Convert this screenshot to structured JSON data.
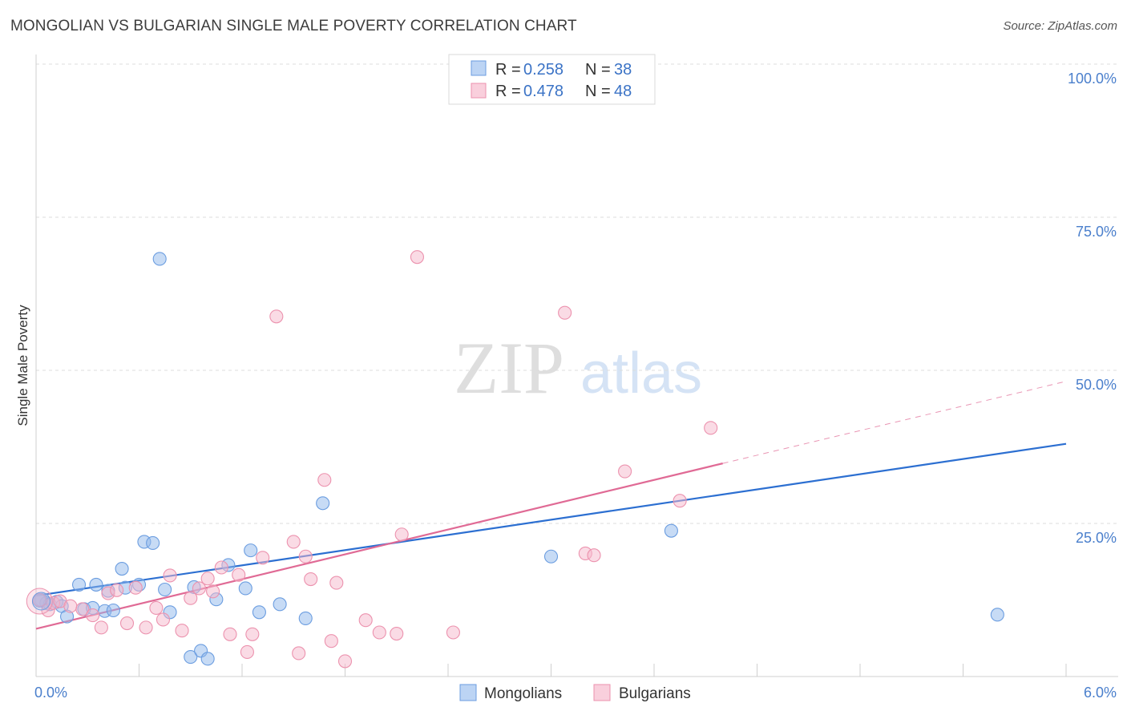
{
  "title": "MONGOLIAN VS BULGARIAN SINGLE MALE POVERTY CORRELATION CHART",
  "source": "Source: ZipAtlas.com",
  "watermark": {
    "zip": "ZIP",
    "atlas": "atlas"
  },
  "chart_data": {
    "type": "scatter",
    "xlabel": "",
    "ylabel": "Single Male Poverty",
    "xlim": [
      0,
      6
    ],
    "ylim": [
      0,
      100
    ],
    "x_tick_labels": [
      {
        "value": 0,
        "label": "0.0%"
      },
      {
        "value": 6,
        "label": "6.0%"
      }
    ],
    "y_tick_labels": [
      {
        "value": 25,
        "label": "25.0%"
      },
      {
        "value": 50,
        "label": "50.0%"
      },
      {
        "value": 75,
        "label": "75.0%"
      },
      {
        "value": 100,
        "label": "100.0%"
      }
    ],
    "grid": true,
    "legend": {
      "placement": "top-center",
      "entries": [
        {
          "r_label": "R =",
          "r_value": "0.258",
          "n_label": "N =",
          "n_value": "38"
        },
        {
          "r_label": "R =",
          "r_value": "0.478",
          "n_label": "N =",
          "n_value": "48"
        }
      ]
    },
    "series": [
      {
        "name": "Mongolians",
        "color": "#8fb8ec",
        "stroke": "#6b9de0",
        "line_color": "#2c6fd1",
        "trend": {
          "x": [
            0,
            6
          ],
          "y": [
            13.2,
            38
          ]
        },
        "points": [
          [
            0.03,
            12.5
          ],
          [
            0.06,
            12.0
          ],
          [
            0.08,
            11.8
          ],
          [
            0.12,
            12.2
          ],
          [
            0.15,
            11.5
          ],
          [
            0.18,
            9.8
          ],
          [
            0.25,
            15.0
          ],
          [
            0.28,
            11.0
          ],
          [
            0.33,
            11.2
          ],
          [
            0.35,
            15.0
          ],
          [
            0.4,
            10.7
          ],
          [
            0.42,
            14.0
          ],
          [
            0.45,
            10.8
          ],
          [
            0.5,
            17.6
          ],
          [
            0.52,
            14.5
          ],
          [
            0.6,
            15.0
          ],
          [
            0.63,
            22.0
          ],
          [
            0.68,
            21.8
          ],
          [
            0.72,
            68.2
          ],
          [
            0.75,
            14.2
          ],
          [
            0.78,
            10.5
          ],
          [
            0.9,
            3.2
          ],
          [
            0.92,
            14.6
          ],
          [
            0.96,
            4.2
          ],
          [
            1.0,
            2.9
          ],
          [
            1.05,
            12.6
          ],
          [
            1.12,
            18.2
          ],
          [
            1.22,
            14.4
          ],
          [
            1.25,
            20.6
          ],
          [
            1.3,
            10.5
          ],
          [
            1.42,
            11.8
          ],
          [
            1.57,
            9.5
          ],
          [
            1.67,
            28.3
          ],
          [
            2.88,
            100
          ],
          [
            3.0,
            19.6
          ],
          [
            3.7,
            23.8
          ],
          [
            5.6,
            10.1
          ],
          [
            0.02,
            12.4
          ]
        ]
      },
      {
        "name": "Bulgarians",
        "color": "#f5b8cb",
        "stroke": "#ec92ae",
        "line_color": "#e06a95",
        "trend": {
          "x": [
            0,
            4.0
          ],
          "y": [
            7.8,
            34.8
          ]
        },
        "trend_dashed": {
          "x": [
            4.0,
            6
          ],
          "y": [
            34.8,
            48.2
          ]
        },
        "points": [
          [
            0.02,
            12.5
          ],
          [
            0.07,
            10.8
          ],
          [
            0.1,
            12.0
          ],
          [
            0.14,
            12.3
          ],
          [
            0.2,
            11.5
          ],
          [
            0.27,
            11.0
          ],
          [
            0.33,
            10.0
          ],
          [
            0.38,
            8.0
          ],
          [
            0.42,
            13.6
          ],
          [
            0.47,
            14.1
          ],
          [
            0.53,
            8.7
          ],
          [
            0.58,
            14.5
          ],
          [
            0.64,
            8.0
          ],
          [
            0.7,
            11.2
          ],
          [
            0.74,
            9.3
          ],
          [
            0.78,
            16.5
          ],
          [
            0.85,
            7.5
          ],
          [
            0.9,
            12.8
          ],
          [
            0.95,
            14.4
          ],
          [
            1.0,
            16.0
          ],
          [
            1.03,
            13.9
          ],
          [
            1.08,
            17.8
          ],
          [
            1.13,
            6.9
          ],
          [
            1.18,
            16.6
          ],
          [
            1.23,
            4.0
          ],
          [
            1.26,
            6.9
          ],
          [
            1.32,
            19.4
          ],
          [
            1.4,
            58.8
          ],
          [
            1.5,
            22.0
          ],
          [
            1.53,
            3.8
          ],
          [
            1.57,
            19.6
          ],
          [
            1.6,
            15.9
          ],
          [
            1.68,
            32.1
          ],
          [
            1.72,
            5.8
          ],
          [
            1.75,
            15.3
          ],
          [
            1.8,
            2.5
          ],
          [
            1.92,
            9.2
          ],
          [
            2.0,
            7.2
          ],
          [
            2.1,
            7.0
          ],
          [
            2.13,
            23.2
          ],
          [
            2.22,
            68.5
          ],
          [
            2.43,
            7.2
          ],
          [
            3.08,
            59.4
          ],
          [
            3.2,
            20.1
          ],
          [
            3.25,
            19.8
          ],
          [
            3.43,
            33.5
          ],
          [
            3.75,
            28.7
          ],
          [
            3.93,
            40.6
          ]
        ]
      }
    ]
  },
  "bottom_legend": [
    {
      "label": "Mongolians"
    },
    {
      "label": "Bulgarians"
    }
  ]
}
